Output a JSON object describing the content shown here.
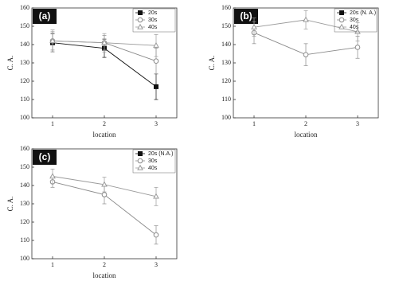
{
  "chart_data": [
    {
      "type": "line",
      "label": "(a)",
      "x_label": "location",
      "y_label": "C. A.",
      "x": [
        1,
        2,
        3
      ],
      "xlim": [
        0.6,
        3.4
      ],
      "xticks": [
        1,
        2,
        3
      ],
      "ylim": [
        100,
        160
      ],
      "yticks": [
        100,
        110,
        120,
        130,
        140,
        150,
        160
      ],
      "series": [
        {
          "name": "20s",
          "color": "#111111",
          "marker": "square",
          "values": [
            141,
            138,
            117
          ],
          "errors": [
            5,
            5,
            7
          ]
        },
        {
          "name": "30s",
          "color": "#8a8a8a",
          "marker": "circle",
          "values": [
            142,
            141,
            131
          ],
          "errors": [
            5,
            4,
            7
          ]
        },
        {
          "name": "40s",
          "color": "#9a9a9a",
          "marker": "triangle",
          "values": [
            142,
            141,
            139.5
          ],
          "errors": [
            6,
            5,
            6
          ]
        }
      ]
    },
    {
      "type": "line",
      "label": "(b)",
      "x_label": "location",
      "y_label": "C. A.",
      "x": [
        1,
        2,
        3
      ],
      "xlim": [
        0.6,
        3.4
      ],
      "xticks": [
        1,
        2,
        3
      ],
      "ylim": [
        100,
        160
      ],
      "yticks": [
        100,
        110,
        120,
        130,
        140,
        150,
        160
      ],
      "series": [
        {
          "name": "20s (N. A.)",
          "color": "#111111",
          "marker": "square",
          "values": [
            null,
            null,
            null
          ],
          "errors": [
            null,
            null,
            null
          ]
        },
        {
          "name": "30s",
          "color": "#8a8a8a",
          "marker": "circle",
          "values": [
            146.5,
            134.5,
            138.5
          ],
          "errors": [
            6,
            6,
            6
          ]
        },
        {
          "name": "40s",
          "color": "#9a9a9a",
          "marker": "triangle",
          "values": [
            149.5,
            153.5,
            147
          ],
          "errors": [
            5,
            5,
            5
          ]
        }
      ]
    },
    {
      "type": "line",
      "label": "(c)",
      "x_label": "location",
      "y_label": "C. A.",
      "x": [
        1,
        2,
        3
      ],
      "xlim": [
        0.6,
        3.4
      ],
      "xticks": [
        1,
        2,
        3
      ],
      "ylim": [
        100,
        160
      ],
      "yticks": [
        100,
        110,
        120,
        130,
        140,
        150,
        160
      ],
      "series": [
        {
          "name": "20s (N.A.)",
          "color": "#111111",
          "marker": "square",
          "values": [
            null,
            null,
            null
          ],
          "errors": [
            null,
            null,
            null
          ]
        },
        {
          "name": "30s",
          "color": "#8a8a8a",
          "marker": "circle",
          "values": [
            142,
            135,
            113
          ],
          "errors": [
            3,
            5,
            5
          ]
        },
        {
          "name": "40s",
          "color": "#9a9a9a",
          "marker": "triangle",
          "values": [
            145,
            140.5,
            134
          ],
          "errors": [
            4,
            4,
            5
          ]
        }
      ]
    }
  ]
}
